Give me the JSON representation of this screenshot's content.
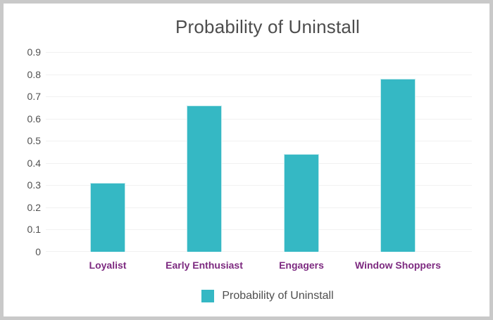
{
  "frame": {
    "border_color": "#c9c9c9",
    "background_color": "#ffffff"
  },
  "chart_data": {
    "type": "bar",
    "title": "Probability of Uninstall",
    "categories": [
      "Loyalist",
      "Early Enthusiast",
      "Engagers",
      "Window Shoppers"
    ],
    "values": [
      0.31,
      0.66,
      0.44,
      0.78
    ],
    "xlabel": "",
    "ylabel": "",
    "ylim": [
      0,
      0.9
    ],
    "ytick_labels": [
      "0.9",
      "0.8",
      "0.7",
      "0.6",
      "0.5",
      "0.4",
      "0.3",
      "0.2",
      "0.1",
      "0"
    ],
    "grid": true,
    "legend": {
      "position": "bottom",
      "entries": [
        "Probability of Uninstall"
      ]
    },
    "colors": {
      "bar": "#35b8c4",
      "bar_border": "#c5ebee",
      "gridline": "#f1f1f1",
      "title_text": "#4d4d4d",
      "tick_text": "#4f4f4f",
      "category_text": "#7d2a80",
      "legend_text": "#4f4f4f"
    }
  }
}
